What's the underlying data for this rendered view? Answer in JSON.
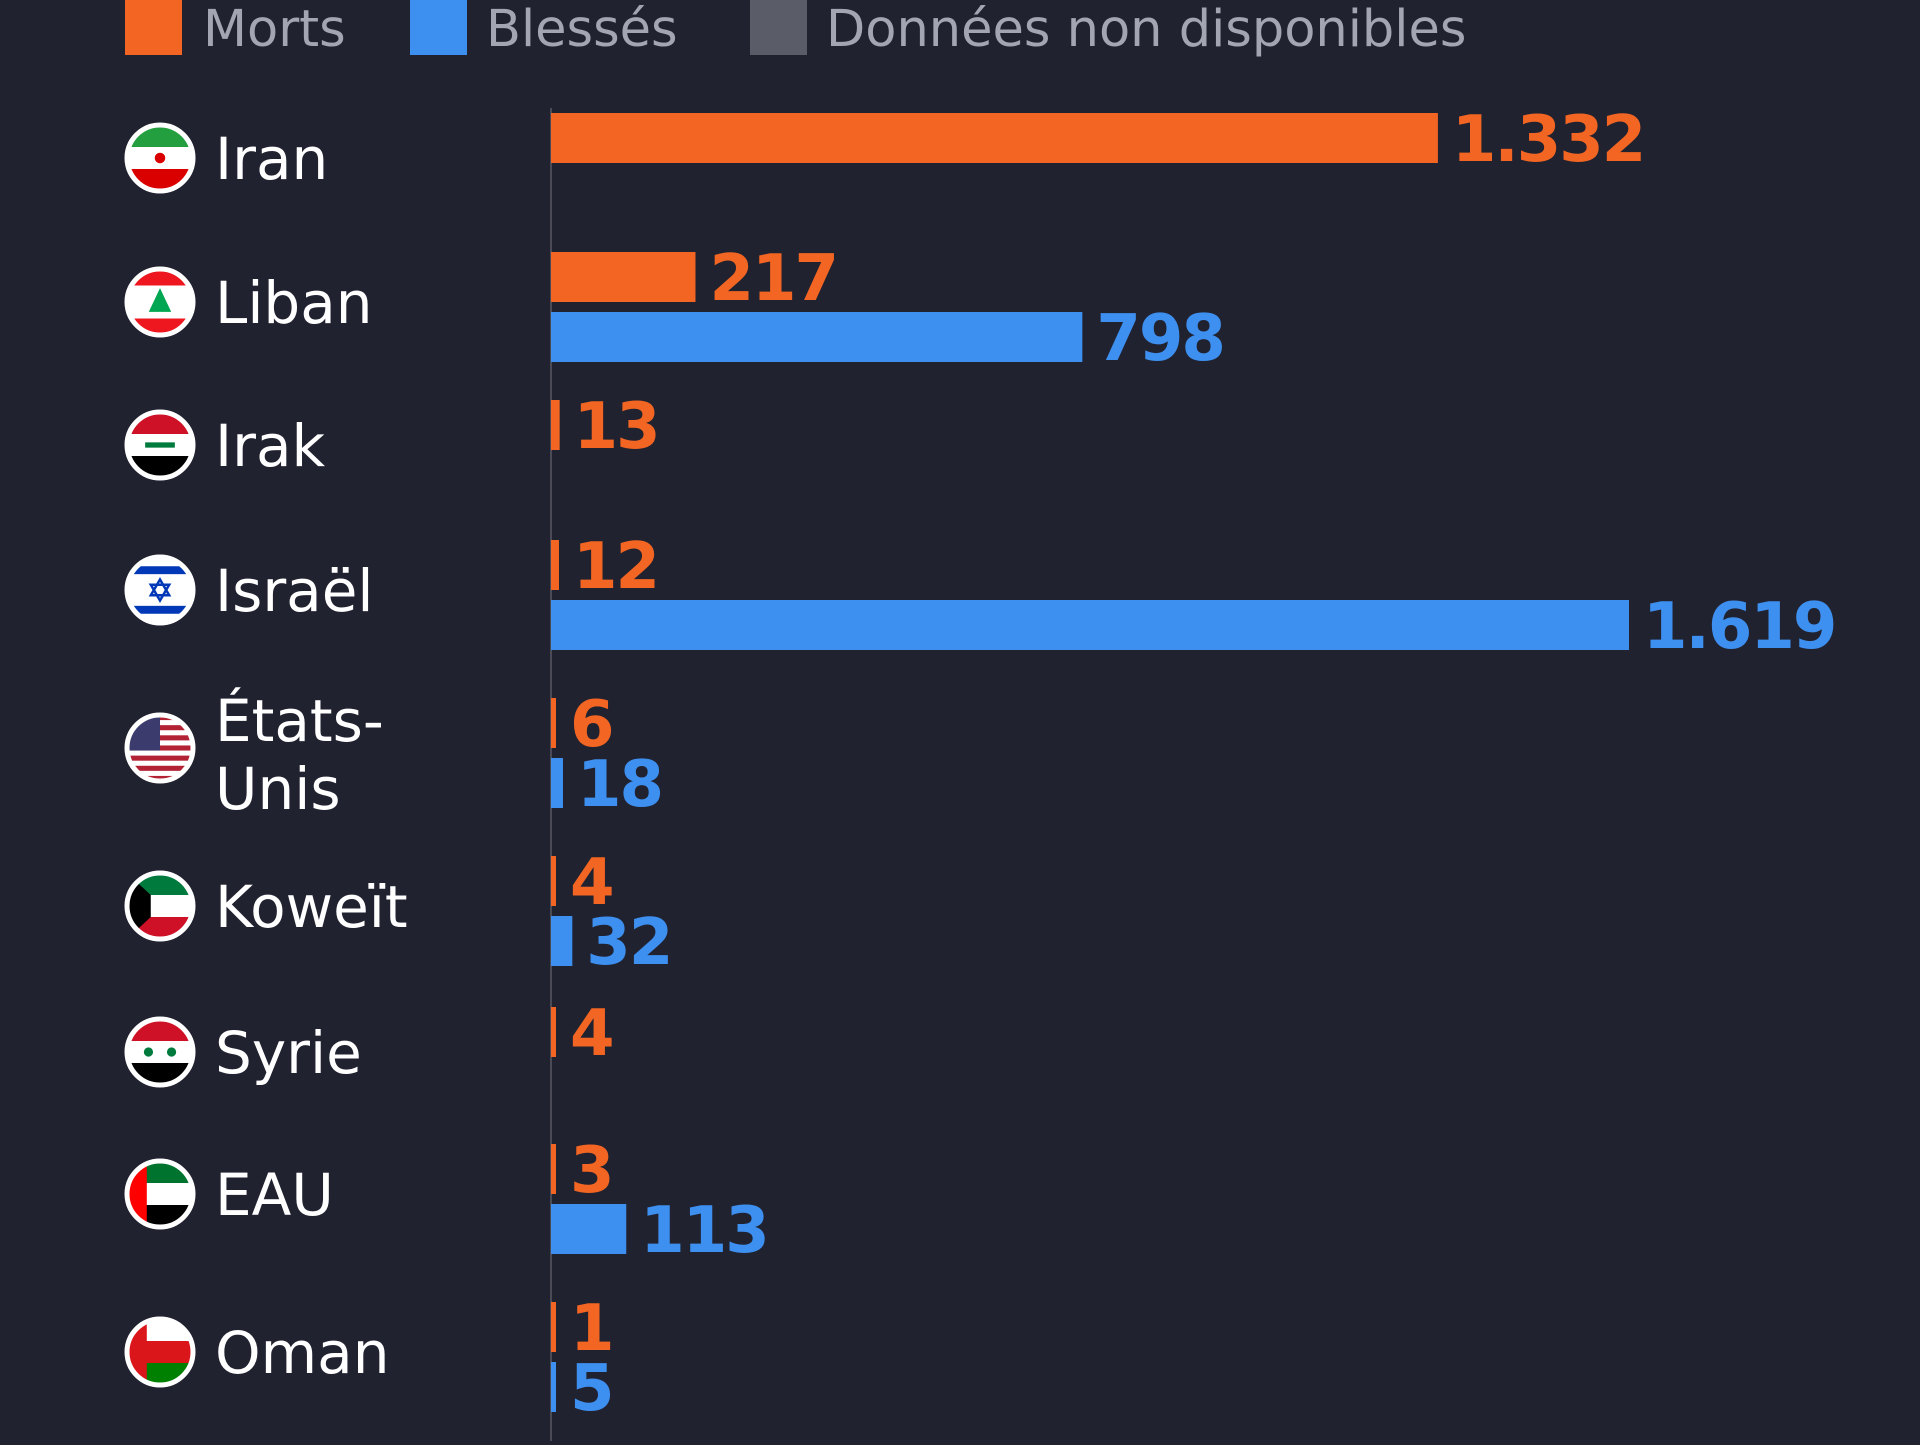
{
  "chart_data": {
    "type": "bar",
    "orientation": "horizontal",
    "grid": false,
    "legend_position": "top-left",
    "legend": [
      {
        "label": "Morts",
        "color": "#f26522"
      },
      {
        "label": "Blessés",
        "color": "#3d8ff0"
      },
      {
        "label": "Données non disponibles",
        "color": "#5a5c68"
      }
    ],
    "categories": [
      {
        "name": "Iran",
        "flag": "iran-flag-icon"
      },
      {
        "name": "Liban",
        "flag": "lebanon-flag-icon"
      },
      {
        "name": "Irak",
        "flag": "iraq-flag-icon"
      },
      {
        "name": "Israël",
        "flag": "israel-flag-icon"
      },
      {
        "name": "États-Unis",
        "lines": [
          "États-",
          "Unis"
        ],
        "flag": "usa-flag-icon"
      },
      {
        "name": "Koweït",
        "flag": "kuwait-flag-icon"
      },
      {
        "name": "Syrie",
        "flag": "syria-flag-icon"
      },
      {
        "name": "EAU",
        "flag": "uae-flag-icon"
      },
      {
        "name": "Oman",
        "flag": "oman-flag-icon"
      }
    ],
    "series": [
      {
        "name": "Morts",
        "color": "#f26522",
        "values": [
          1332,
          217,
          13,
          12,
          6,
          4,
          4,
          3,
          1
        ],
        "labels": [
          "1.332",
          "217",
          "13",
          "12",
          "6",
          "4",
          "4",
          "3",
          "1"
        ]
      },
      {
        "name": "Blessés",
        "color": "#3d8ff0",
        "values": [
          null,
          798,
          null,
          1619,
          18,
          32,
          null,
          113,
          5
        ],
        "labels": [
          null,
          "798",
          null,
          "1.619",
          "18",
          "32",
          null,
          "113",
          "5"
        ]
      }
    ],
    "xlim": [
      0,
      1619
    ]
  },
  "colors": {
    "background": "#212230",
    "axis": "#4a4b57",
    "label_text": "#ffffff",
    "legend_text": "#a3a5b3"
  }
}
